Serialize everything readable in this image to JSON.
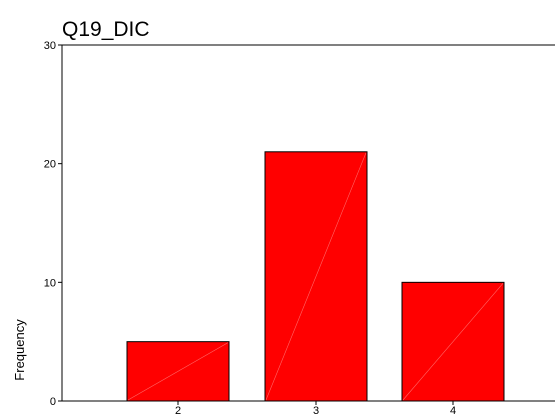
{
  "chart_data": {
    "type": "bar",
    "title": "Q19_DIC",
    "xlabel": "",
    "ylabel": "Frequency",
    "categories": [
      "2",
      "3",
      "4"
    ],
    "values": [
      5,
      21,
      10
    ],
    "ylim": [
      0,
      30
    ],
    "yticks": [
      "0",
      "10",
      "20",
      "30"
    ],
    "bar_color": "#ff0000",
    "bar_outline_color": "#000000",
    "grid": false
  }
}
